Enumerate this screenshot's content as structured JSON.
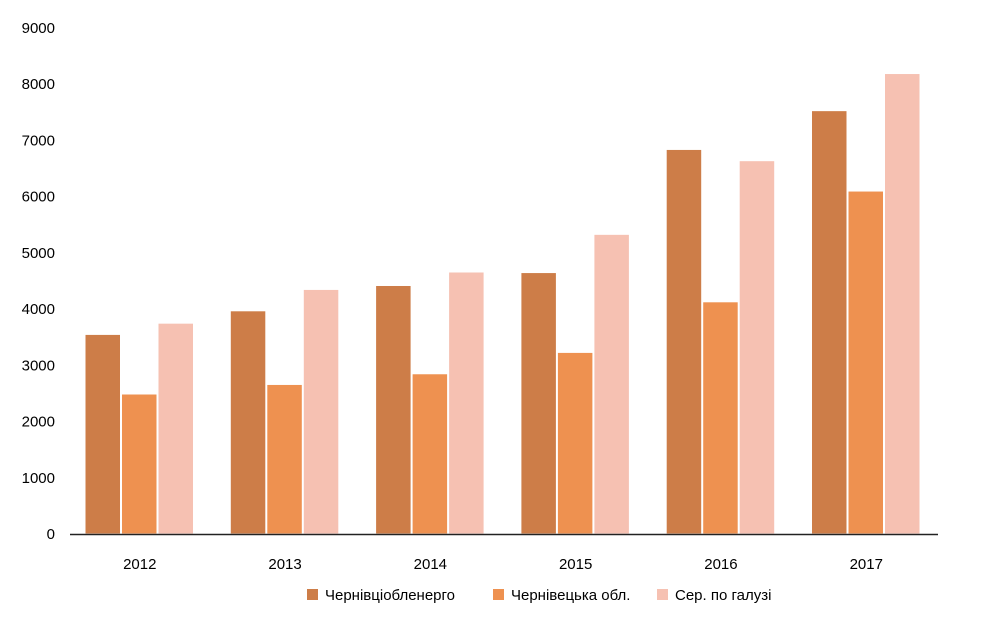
{
  "chart_data": {
    "type": "bar",
    "title": "",
    "xlabel": "",
    "ylabel": "",
    "categories": [
      "2012",
      "2013",
      "2014",
      "2015",
      "2016",
      "2017"
    ],
    "ylim": [
      0,
      9000
    ],
    "yticks": [
      0,
      1000,
      2000,
      3000,
      4000,
      5000,
      6000,
      7000,
      8000,
      9000
    ],
    "grid": false,
    "legend_position": "bottom",
    "series": [
      {
        "name": "Чернівціобленерго",
        "color": "#cd7d48",
        "values": [
          3550,
          3970,
          4420,
          4650,
          6840,
          7530
        ]
      },
      {
        "name": "Чернівецька обл.",
        "color": "#ee9150",
        "values": [
          2490,
          2660,
          2850,
          3230,
          4130,
          6100
        ]
      },
      {
        "name": "Сер. по галузі",
        "color": "#f6c1b2",
        "values": [
          3750,
          4350,
          4660,
          5330,
          6640,
          8190
        ]
      }
    ]
  }
}
